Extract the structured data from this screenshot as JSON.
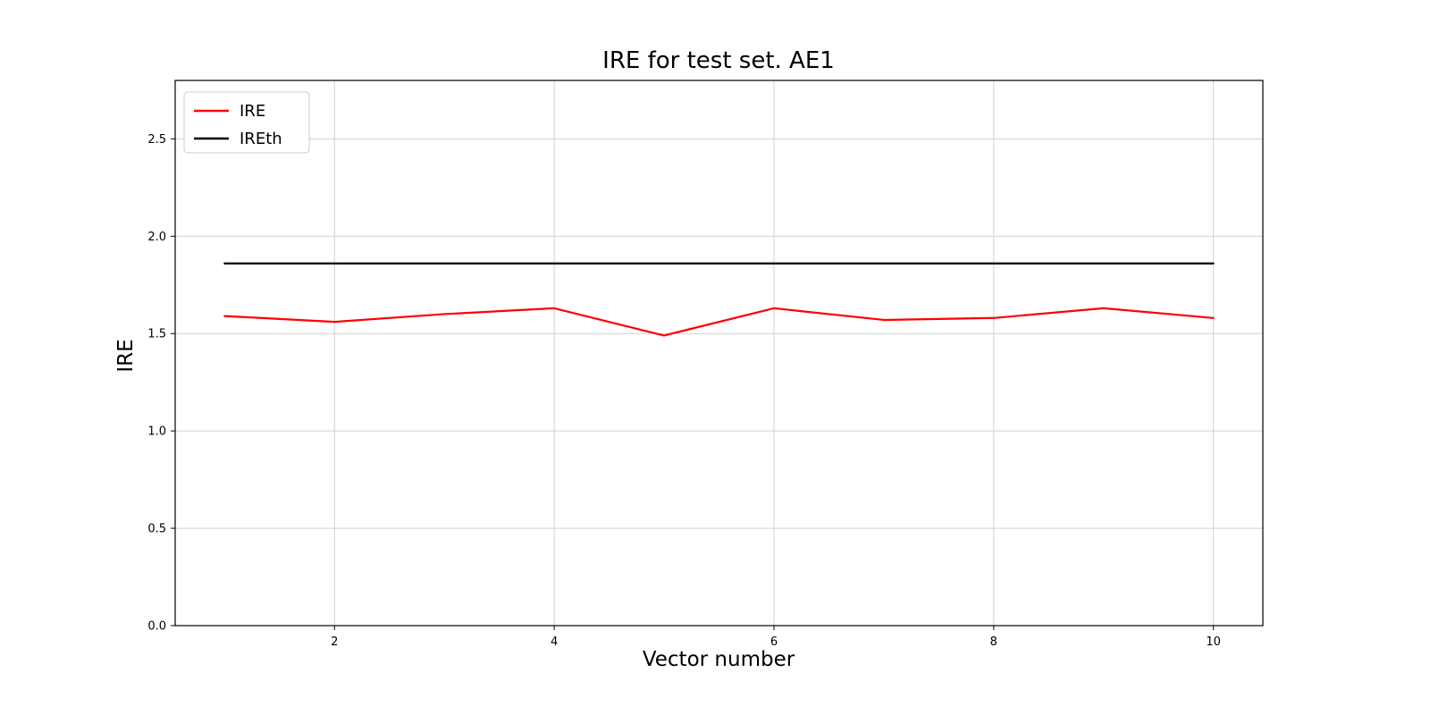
{
  "chart_data": {
    "type": "line",
    "title": "IRE for test set. AE1",
    "xlabel": "Vector number",
    "ylabel": "IRE",
    "x": [
      1,
      2,
      3,
      4,
      5,
      6,
      7,
      8,
      9,
      10
    ],
    "series": [
      {
        "name": "IRE",
        "color": "#ff0000",
        "values": [
          1.59,
          1.56,
          1.6,
          1.63,
          1.49,
          1.63,
          1.57,
          1.58,
          1.63,
          1.58
        ]
      },
      {
        "name": "IREth",
        "color": "#000000",
        "values": [
          1.86,
          1.86,
          1.86,
          1.86,
          1.86,
          1.86,
          1.86,
          1.86,
          1.86,
          1.86
        ]
      }
    ],
    "xlim": [
      0.55,
      10.45
    ],
    "ylim": [
      0.0,
      2.8
    ],
    "xticks": [
      2,
      4,
      6,
      8,
      10
    ],
    "yticks": [
      0.0,
      0.5,
      1.0,
      1.5,
      2.0,
      2.5
    ],
    "grid": true,
    "grid_color": "#d0d0d0",
    "legend_position": "upper left",
    "axes_edge_color": "#000000",
    "background_color": "#ffffff"
  }
}
